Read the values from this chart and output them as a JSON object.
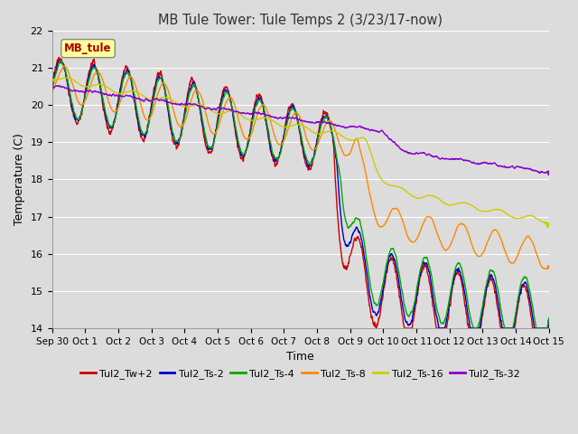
{
  "title": "MB Tule Tower: Tule Temps 2 (3/23/17-now)",
  "xlabel": "Time",
  "ylabel": "Temperature (C)",
  "ylim": [
    14.0,
    22.0
  ],
  "yticks": [
    14.0,
    15.0,
    16.0,
    17.0,
    18.0,
    19.0,
    20.0,
    21.0,
    22.0
  ],
  "bg_color": "#dcdcdc",
  "plot_bg_color": "#dcdcdc",
  "grid_color": "#ffffff",
  "legend_label": "MB_tule",
  "legend_label_color": "#aa0000",
  "legend_box_color": "#ffff99",
  "series": [
    {
      "name": "Tul2_Tw+2",
      "color": "#cc0000",
      "lw": 1.0
    },
    {
      "name": "Tul2_Ts-2",
      "color": "#0000cc",
      "lw": 1.0
    },
    {
      "name": "Tul2_Ts-4",
      "color": "#00aa00",
      "lw": 1.0
    },
    {
      "name": "Tul2_Ts-8",
      "color": "#ff8800",
      "lw": 1.0
    },
    {
      "name": "Tul2_Ts-16",
      "color": "#cccc00",
      "lw": 1.0
    },
    {
      "name": "Tul2_Ts-32",
      "color": "#8800cc",
      "lw": 1.0
    }
  ],
  "x_tick_labels": [
    "Sep 30",
    "Oct 1",
    "Oct 2",
    "Oct 3",
    "Oct 4",
    "Oct 5",
    "Oct 6",
    "Oct 7",
    "Oct 8",
    "Oct 9",
    "Oct 10",
    "Oct 11",
    "Oct 12",
    "Oct 13",
    "Oct 14",
    "Oct 15"
  ],
  "figsize": [
    6.4,
    4.8
  ],
  "dpi": 100
}
